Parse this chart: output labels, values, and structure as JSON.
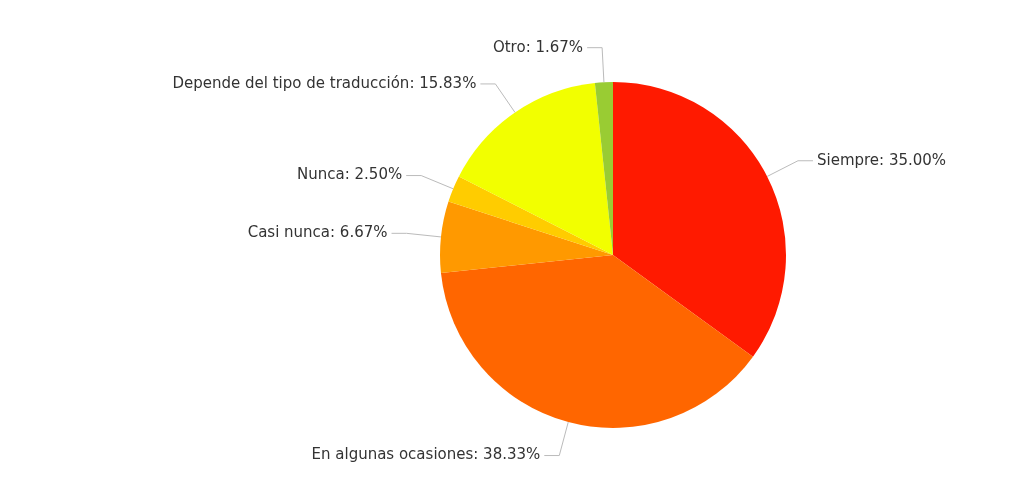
{
  "chart_data": {
    "type": "pie",
    "categories": [
      "Siempre",
      "En algunas ocasiones",
      "Casi nunca",
      "Nunca",
      "Depende del tipo de traducción",
      "Otro"
    ],
    "values": [
      35.0,
      38.33,
      6.67,
      2.5,
      15.83,
      1.67
    ],
    "value_labels": [
      "35.00%",
      "38.33%",
      "6.67%",
      "2.50%",
      "15.83%",
      "1.67%"
    ],
    "colors": [
      "#ff1a00",
      "#ff6600",
      "#ff9900",
      "#ffcc00",
      "#f2ff00",
      "#99cc33"
    ],
    "legend": false
  }
}
